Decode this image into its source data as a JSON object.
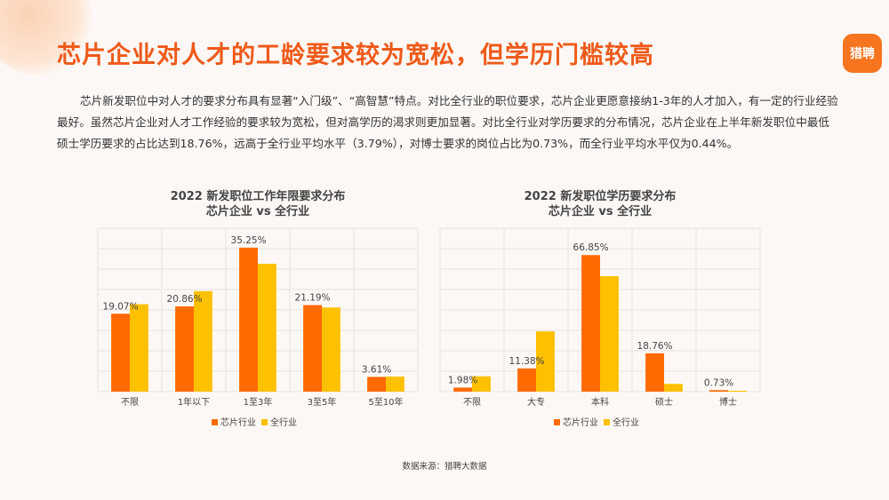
{
  "header": {
    "title": "芯片企业对人才的工龄要求较为宽松，但学历门槛较高",
    "logo_text": "猎聘"
  },
  "description": "芯片新发职位中对人才的要求分布具有显著“入门级”、“高智慧”特点。对比全行业的职位要求，芯片企业更愿意接纳1-3年的人才加入，有一定的行业经验最好。虽然芯片企业对人才工作经验的要求较为宽松，但对高学历的渴求则更加显著。对比全行业对学历要求的分布情况，芯片企业在上半年新发职位中最低硕士学历要求的占比达到18.76%，远高于全行业平均水平（3.79%），对博士要求的岗位占比为0.73%，而全行业平均水平仅为0.44%。",
  "source": "数据来源：猎聘大数据",
  "colors": {
    "chip": "#ff6a00",
    "all": "#ffc000",
    "title": "#ef5a1a",
    "grid": "#e4e4e4"
  },
  "chart_data": [
    {
      "type": "bar",
      "title_line1": "2022 新发职位工作年限要求分布",
      "title_line2": "芯片企业 vs 全行业",
      "categories": [
        "不限",
        "1年以下",
        "1至3年",
        "3至5年",
        "5至10年"
      ],
      "series": [
        {
          "name": "芯片行业",
          "values": [
            19.07,
            20.86,
            35.25,
            21.19,
            3.61
          ]
        },
        {
          "name": "全行业",
          "values": [
            21.4,
            24.6,
            31.3,
            20.6,
            3.7
          ]
        }
      ],
      "data_labels": [
        "19.07%",
        "20.86%",
        "35.25%",
        "21.19%",
        "3.61%"
      ],
      "ylim": [
        0,
        40
      ],
      "grid": true,
      "legend_position": "bottom"
    },
    {
      "type": "bar",
      "title_line1": "2022 新发职位学历要求分布",
      "title_line2": "芯片企业 vs 全行业",
      "categories": [
        "不限",
        "大专",
        "本科",
        "硕士",
        "博士"
      ],
      "series": [
        {
          "name": "芯片行业",
          "values": [
            1.98,
            11.38,
            66.85,
            18.76,
            0.73
          ]
        },
        {
          "name": "全行业",
          "values": [
            7.5,
            29.5,
            56.5,
            3.79,
            0.44
          ]
        }
      ],
      "data_labels": [
        "1.98%",
        "11.38%",
        "66.85%",
        "18.76%",
        "0.73%"
      ],
      "ylim": [
        0,
        80
      ],
      "grid": true,
      "legend_position": "bottom"
    }
  ]
}
